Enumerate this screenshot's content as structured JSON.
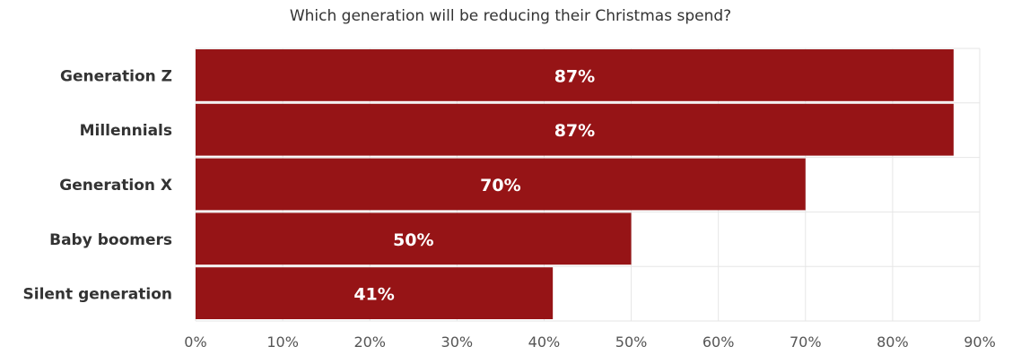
{
  "chart_data": {
    "type": "bar",
    "orientation": "horizontal",
    "title": "Which generation will be reducing their Christmas spend?",
    "categories": [
      "Generation Z",
      "Millennials",
      "Generation X",
      "Baby boomers",
      "Silent generation"
    ],
    "values": [
      87,
      87,
      70,
      50,
      41
    ],
    "data_labels": [
      "87%",
      "87%",
      "70%",
      "50%",
      "41%"
    ],
    "xlim": [
      0,
      90
    ],
    "xticks": [
      0,
      10,
      20,
      30,
      40,
      50,
      60,
      70,
      80,
      90
    ],
    "xtick_labels": [
      "0%",
      "10%",
      "20%",
      "30%",
      "40%",
      "50%",
      "60%",
      "70%",
      "80%",
      "90%"
    ],
    "xlabel": "",
    "ylabel": "",
    "grid": true,
    "legend": "none",
    "colors": {
      "bar": "#961416",
      "grid": "#e6e6e6",
      "label_text": "#ffffff"
    }
  }
}
